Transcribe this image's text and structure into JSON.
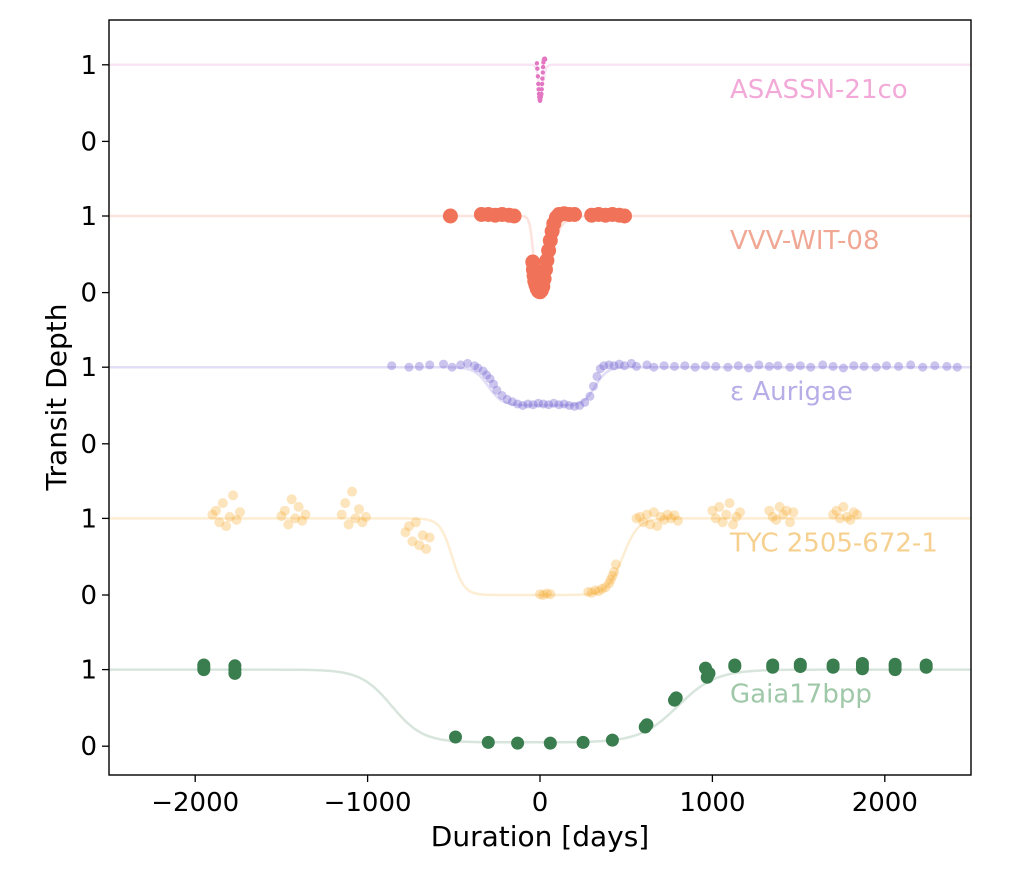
{
  "chart_data": {
    "type": "scatter",
    "xlabel": "Duration [days]",
    "ylabel": "Transit Depth",
    "xlim": [
      -2500,
      2500
    ],
    "x_ticks": [
      -2000,
      -1000,
      0,
      1000,
      2000
    ],
    "x_tick_labels": [
      "−2000",
      "−1000",
      "0",
      "1000",
      "2000"
    ],
    "grid": false,
    "legend": "none",
    "panel_y_ticks": [
      "1",
      "0"
    ],
    "series": [
      {
        "name": "ASASSN-21co",
        "color": "#e377c2",
        "label_color": "#f2a9d8",
        "model": {
          "depth": 0.4,
          "t1": -10,
          "t2": 20,
          "w1": 6,
          "w2": 8
        },
        "points": [
          [
            -18,
            1.02
          ],
          [
            -15,
            0.95
          ],
          [
            -12,
            0.85
          ],
          [
            -10,
            0.75
          ],
          [
            -8,
            0.68
          ],
          [
            -6,
            0.62
          ],
          [
            -4,
            0.58
          ],
          [
            -2,
            0.55
          ],
          [
            0,
            0.53
          ],
          [
            2,
            0.55
          ],
          [
            4,
            0.58
          ],
          [
            6,
            0.6
          ],
          [
            8,
            0.62
          ],
          [
            10,
            0.68
          ],
          [
            12,
            0.75
          ],
          [
            14,
            0.82
          ],
          [
            16,
            0.9
          ],
          [
            18,
            0.97
          ],
          [
            20,
            1.03
          ],
          [
            22,
            1.06
          ],
          [
            24,
            1.07
          ],
          [
            26,
            1.08
          ],
          [
            28,
            1.08
          ],
          [
            30,
            1.07
          ]
        ],
        "point_size": 2.2,
        "point_alpha": 1
      },
      {
        "name": "VVV-WIT-08",
        "color": "#f07258",
        "label_color": "#f0a794",
        "model": {
          "depth": 1.0,
          "t1": -40,
          "t2": 60,
          "w1": 10,
          "w2": 35
        },
        "points": [
          [
            -520,
            1.0
          ],
          [
            -340,
            1.02
          ],
          [
            -300,
            1.02
          ],
          [
            -260,
            1.01
          ],
          [
            -220,
            1.02
          ],
          [
            -180,
            1.01
          ],
          [
            -150,
            1.0
          ],
          [
            -42,
            0.4
          ],
          [
            -38,
            0.3
          ],
          [
            -34,
            0.22
          ],
          [
            -30,
            0.15
          ],
          [
            -24,
            0.1
          ],
          [
            -16,
            0.05
          ],
          [
            -8,
            0.02
          ],
          [
            0,
            0.01
          ],
          [
            8,
            0.03
          ],
          [
            16,
            0.08
          ],
          [
            24,
            0.18
          ],
          [
            32,
            0.3
          ],
          [
            40,
            0.42
          ],
          [
            50,
            0.55
          ],
          [
            60,
            0.68
          ],
          [
            70,
            0.8
          ],
          [
            80,
            0.9
          ],
          [
            95,
            0.98
          ],
          [
            110,
            1.02
          ],
          [
            140,
            1.03
          ],
          [
            170,
            1.02
          ],
          [
            200,
            1.02
          ],
          [
            300,
            1.01
          ],
          [
            340,
            1.02
          ],
          [
            380,
            1.01
          ],
          [
            420,
            1.02
          ],
          [
            460,
            1.01
          ],
          [
            490,
            1.0
          ]
        ],
        "point_size": 7.5,
        "point_alpha": 1
      },
      {
        "name": "ε Aurigae",
        "color": "#6a5acd",
        "label_color": "#b7aee8",
        "model": {
          "depth": 0.5,
          "t1": -300,
          "t2": 320,
          "w1": 40,
          "w2": 35
        },
        "points": [
          [
            -860,
            1.02
          ],
          [
            -760,
            1.0
          ],
          [
            -700,
            1.01
          ],
          [
            -640,
            1.03
          ],
          [
            -560,
            1.04
          ],
          [
            -510,
            1.0
          ],
          [
            -460,
            1.03
          ],
          [
            -420,
            1.05
          ],
          [
            -380,
            1.02
          ],
          [
            -360,
            0.99
          ],
          [
            -330,
            0.95
          ],
          [
            -310,
            0.9
          ],
          [
            -290,
            0.85
          ],
          [
            -270,
            0.78
          ],
          [
            -250,
            0.7
          ],
          [
            -220,
            0.63
          ],
          [
            -190,
            0.58
          ],
          [
            -160,
            0.55
          ],
          [
            -130,
            0.52
          ],
          [
            -100,
            0.5
          ],
          [
            -70,
            0.52
          ],
          [
            -40,
            0.51
          ],
          [
            -10,
            0.53
          ],
          [
            20,
            0.52
          ],
          [
            50,
            0.51
          ],
          [
            80,
            0.53
          ],
          [
            110,
            0.51
          ],
          [
            140,
            0.52
          ],
          [
            170,
            0.5
          ],
          [
            200,
            0.49
          ],
          [
            230,
            0.5
          ],
          [
            260,
            0.54
          ],
          [
            290,
            0.62
          ],
          [
            310,
            0.75
          ],
          [
            330,
            0.88
          ],
          [
            350,
            0.98
          ],
          [
            370,
            1.02
          ],
          [
            400,
            1.03
          ],
          [
            430,
            1.02
          ],
          [
            460,
            1.04
          ],
          [
            490,
            1.02
          ],
          [
            530,
            1.05
          ],
          [
            560,
            1.01
          ],
          [
            620,
            1.03
          ],
          [
            660,
            1.0
          ],
          [
            720,
            1.02
          ],
          [
            780,
            1.01
          ],
          [
            840,
            1.02
          ],
          [
            900,
            1.0
          ],
          [
            960,
            1.02
          ],
          [
            1020,
            1.01
          ],
          [
            1090,
            1.0
          ],
          [
            1150,
            1.02
          ],
          [
            1210,
            0.99
          ],
          [
            1270,
            1.03
          ],
          [
            1330,
            1.01
          ],
          [
            1380,
            1.02
          ],
          [
            1450,
            1.0
          ],
          [
            1510,
            1.02
          ],
          [
            1570,
            1.0
          ],
          [
            1640,
            1.03
          ],
          [
            1700,
            1.01
          ],
          [
            1760,
            0.99
          ],
          [
            1820,
            1.02
          ],
          [
            1880,
            1.01
          ],
          [
            1950,
            1.0
          ],
          [
            2010,
            1.02
          ],
          [
            2080,
            1.01
          ],
          [
            2150,
            1.03
          ],
          [
            2220,
            1.0
          ],
          [
            2290,
            1.02
          ],
          [
            2360,
            1.01
          ],
          [
            2420,
            1.0
          ]
        ],
        "point_size": 4.5,
        "point_alpha": 0.35
      },
      {
        "name": "TYC 2505-672-1",
        "color": "#f5a623",
        "label_color": "#f6d08f",
        "model": {
          "depth": 1.0,
          "t1": -510,
          "t2": 480,
          "w1": 35,
          "w2": 45
        },
        "points": [
          [
            -1900,
            1.05
          ],
          [
            -1880,
            1.1
          ],
          [
            -1860,
            0.95
          ],
          [
            -1840,
            1.2
          ],
          [
            -1820,
            0.9
          ],
          [
            -1800,
            1.02
          ],
          [
            -1780,
            1.3
          ],
          [
            -1760,
            0.98
          ],
          [
            -1740,
            1.08
          ],
          [
            -1500,
            1.03
          ],
          [
            -1480,
            1.1
          ],
          [
            -1460,
            0.92
          ],
          [
            -1440,
            1.25
          ],
          [
            -1420,
            1.0
          ],
          [
            -1400,
            1.15
          ],
          [
            -1380,
            0.97
          ],
          [
            -1360,
            1.05
          ],
          [
            -1150,
            1.05
          ],
          [
            -1130,
            1.2
          ],
          [
            -1110,
            0.92
          ],
          [
            -1090,
            1.35
          ],
          [
            -1070,
            1.0
          ],
          [
            -1050,
            1.12
          ],
          [
            -1030,
            0.95
          ],
          [
            -1010,
            1.02
          ],
          [
            -780,
            0.82
          ],
          [
            -760,
            0.9
          ],
          [
            -740,
            0.7
          ],
          [
            -720,
            0.95
          ],
          [
            -700,
            0.65
          ],
          [
            -680,
            0.78
          ],
          [
            -660,
            0.6
          ],
          [
            -640,
            0.75
          ],
          [
            0,
            0.01
          ],
          [
            20,
            0.0
          ],
          [
            40,
            0.02
          ],
          [
            60,
            0.01
          ],
          [
            280,
            0.04
          ],
          [
            300,
            0.03
          ],
          [
            320,
            0.06
          ],
          [
            340,
            0.05
          ],
          [
            360,
            0.08
          ],
          [
            380,
            0.1
          ],
          [
            400,
            0.15
          ],
          [
            410,
            0.2
          ],
          [
            420,
            0.25
          ],
          [
            430,
            0.3
          ],
          [
            440,
            0.4
          ],
          [
            560,
            1.0
          ],
          [
            580,
            1.02
          ],
          [
            600,
            0.95
          ],
          [
            620,
            1.05
          ],
          [
            640,
            0.92
          ],
          [
            660,
            1.08
          ],
          [
            680,
            0.9
          ],
          [
            700,
            1.02
          ],
          [
            720,
            0.98
          ],
          [
            740,
            1.05
          ],
          [
            760,
            1.0
          ],
          [
            780,
            1.04
          ],
          [
            800,
            0.97
          ],
          [
            1000,
            1.1
          ],
          [
            1020,
            1.0
          ],
          [
            1040,
            1.15
          ],
          [
            1060,
            0.95
          ],
          [
            1080,
            1.05
          ],
          [
            1100,
            1.2
          ],
          [
            1120,
            0.92
          ],
          [
            1140,
            1.02
          ],
          [
            1160,
            1.08
          ],
          [
            1330,
            1.1
          ],
          [
            1350,
            1.02
          ],
          [
            1370,
            0.98
          ],
          [
            1390,
            1.15
          ],
          [
            1410,
            1.05
          ],
          [
            1430,
            1.1
          ],
          [
            1450,
            0.95
          ],
          [
            1470,
            1.08
          ],
          [
            1700,
            1.05
          ],
          [
            1720,
            1.1
          ],
          [
            1740,
            1.0
          ],
          [
            1760,
            1.15
          ],
          [
            1780,
            1.02
          ],
          [
            1800,
            0.98
          ],
          [
            1820,
            1.08
          ],
          [
            1840,
            1.05
          ]
        ],
        "point_size": 5,
        "point_alpha": 0.3
      },
      {
        "name": "Gaia17bpp",
        "color": "#3a7d4f",
        "label_color": "#9fc8a8",
        "model": {
          "depth": 0.95,
          "t1": -860,
          "t2": 800,
          "w1": 90,
          "w2": 110
        },
        "points": [
          [
            -1950,
            1.06
          ],
          [
            -1950,
            1.03
          ],
          [
            -1950,
            1.0
          ],
          [
            -1770,
            1.05
          ],
          [
            -1770,
            1.0
          ],
          [
            -1770,
            0.95
          ],
          [
            -490,
            0.12
          ],
          [
            -300,
            0.05
          ],
          [
            -130,
            0.04
          ],
          [
            60,
            0.04
          ],
          [
            250,
            0.05
          ],
          [
            420,
            0.08
          ],
          [
            610,
            0.25
          ],
          [
            620,
            0.28
          ],
          [
            780,
            0.6
          ],
          [
            790,
            0.63
          ],
          [
            960,
            1.02
          ],
          [
            970,
            0.9
          ],
          [
            980,
            0.95
          ],
          [
            1130,
            1.06
          ],
          [
            1130,
            1.04
          ],
          [
            1350,
            1.06
          ],
          [
            1350,
            1.03
          ],
          [
            1510,
            1.07
          ],
          [
            1510,
            1.04
          ],
          [
            1700,
            1.06
          ],
          [
            1700,
            1.03
          ],
          [
            1870,
            1.08
          ],
          [
            1870,
            1.04
          ],
          [
            1870,
            1.01
          ],
          [
            2060,
            1.07
          ],
          [
            2060,
            1.04
          ],
          [
            2060,
            1.0
          ],
          [
            2240,
            1.06
          ],
          [
            2240,
            1.03
          ]
        ],
        "point_size": 6.5,
        "point_alpha": 1
      }
    ]
  }
}
